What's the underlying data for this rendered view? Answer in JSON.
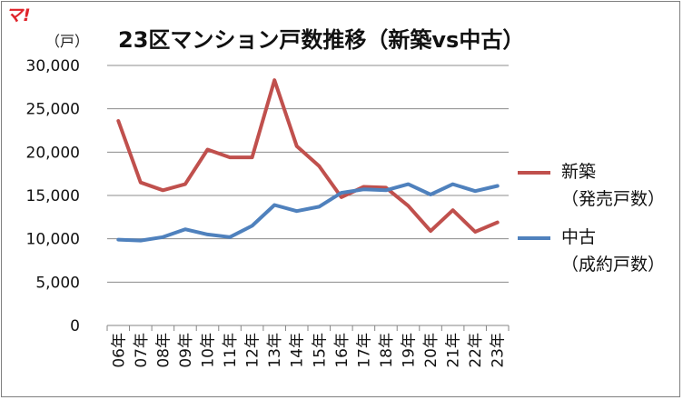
{
  "chart_data": {
    "type": "line",
    "logo": "マ!",
    "title": "23区マンション戸数推移（新築vs中古）",
    "unit": "（戸）",
    "categories": [
      "06年",
      "07年",
      "08年",
      "09年",
      "10年",
      "11年",
      "12年",
      "13年",
      "14年",
      "15年",
      "16年",
      "17年",
      "18年",
      "19年",
      "20年",
      "21年",
      "22年",
      "23年"
    ],
    "yticks": [
      "0",
      "5,000",
      "10,000",
      "15,000",
      "20,000",
      "25,000",
      "30,000"
    ],
    "ylim": [
      0,
      30000
    ],
    "series": [
      {
        "name": "新築",
        "sublabel": "（発売戸数）",
        "color": "#c0504d",
        "values": [
          23600,
          16500,
          15600,
          16300,
          20300,
          19400,
          19400,
          28300,
          20700,
          18400,
          14800,
          16000,
          15900,
          13800,
          10900,
          13300,
          10800,
          11900
        ]
      },
      {
        "name": "中古",
        "sublabel": "（成約戸数）",
        "color": "#4f81bd",
        "values": [
          9900,
          9800,
          10200,
          11100,
          10500,
          10200,
          11500,
          13900,
          13200,
          13700,
          15300,
          15700,
          15600,
          16300,
          15100,
          16300,
          15500,
          16100
        ]
      }
    ],
    "legend": "right"
  }
}
